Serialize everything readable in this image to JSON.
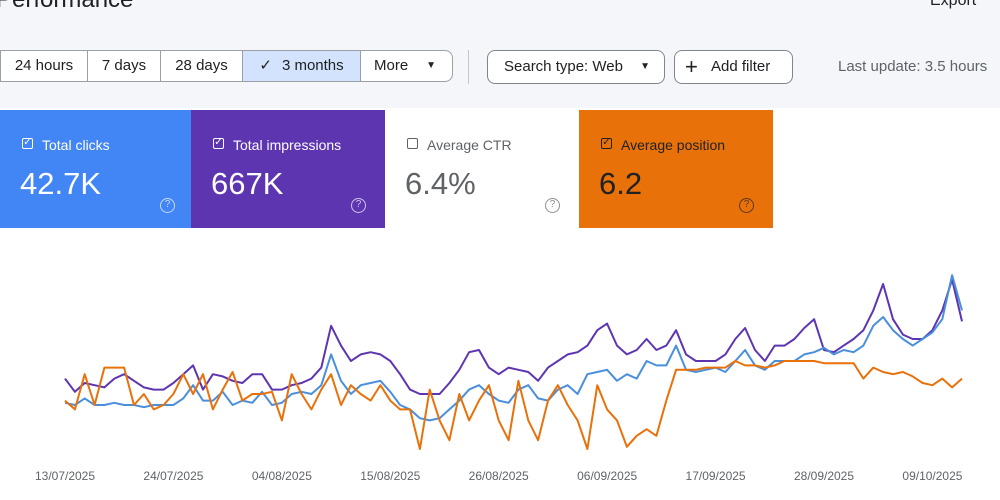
{
  "header": {
    "title": "Performance",
    "export": "Export"
  },
  "toolbar": {
    "ranges": [
      "24 hours",
      "7 days",
      "28 days",
      "3 months",
      "More"
    ],
    "selected": 3,
    "search_type": "Search type: Web",
    "add_filter": "Add filter",
    "last_update": "Last update: 3.5 hours"
  },
  "cards": [
    {
      "label": "Total clicks",
      "value": "42.7K",
      "checked": true,
      "color": "#4285f4"
    },
    {
      "label": "Total impressions",
      "value": "667K",
      "checked": true,
      "color": "#5e35b1"
    },
    {
      "label": "Average CTR",
      "value": "6.4%",
      "checked": false,
      "color": "#ffffff"
    },
    {
      "label": "Average position",
      "value": "6.2",
      "checked": true,
      "color": "#e8710a"
    }
  ],
  "chart_data": {
    "type": "line",
    "categories": [
      "13/07/2025",
      null,
      null,
      null,
      null,
      null,
      null,
      null,
      null,
      null,
      null,
      "24/07/2025",
      null,
      null,
      null,
      null,
      null,
      null,
      null,
      null,
      null,
      null,
      "04/08/2025",
      null,
      null,
      null,
      null,
      null,
      null,
      null,
      null,
      null,
      null,
      "15/08/2025",
      null,
      null,
      null,
      null,
      null,
      null,
      null,
      null,
      null,
      null,
      "26/08/2025",
      null,
      null,
      null,
      null,
      null,
      null,
      null,
      null,
      null,
      null,
      "06/09/2025",
      null,
      null,
      null,
      null,
      null,
      null,
      null,
      null,
      null,
      null,
      "17/09/2025",
      null,
      null,
      null,
      null,
      null,
      null,
      null,
      null,
      null,
      null,
      "28/09/2025",
      null,
      null,
      null,
      null,
      null,
      null,
      null,
      null,
      null,
      null,
      "09/10/2025",
      null,
      null,
      null
    ],
    "ylim": [
      0,
      100
    ],
    "grid": false,
    "series": [
      {
        "name": "Total impressions",
        "color": "#5e35b1",
        "values": [
          37,
          31,
          35,
          34,
          33,
          37,
          39,
          36,
          33,
          32,
          32,
          35,
          39,
          43,
          32,
          39,
          38,
          36,
          35,
          39,
          39,
          32,
          32,
          34,
          35,
          37,
          42,
          61,
          52,
          45,
          48,
          49,
          48,
          45,
          39,
          32,
          30,
          30,
          30,
          35,
          41,
          49,
          50,
          42,
          39,
          42,
          41,
          40,
          36,
          42,
          45,
          48,
          49,
          52,
          59,
          62,
          52,
          48,
          50,
          55,
          50,
          52,
          59,
          48,
          45,
          45,
          45,
          48,
          55,
          60,
          50,
          45,
          52,
          52,
          55,
          60,
          64,
          50,
          49,
          52,
          55,
          59,
          68,
          80,
          64,
          57,
          55,
          55,
          59,
          68,
          82,
          63
        ]
      },
      {
        "name": "Total clicks",
        "color": "#4a8fdb",
        "values": [
          26,
          25,
          28,
          25,
          25,
          26,
          25,
          25,
          24,
          25,
          25,
          25,
          28,
          34,
          27,
          27,
          31,
          25,
          27,
          26,
          31,
          25,
          26,
          30,
          31,
          30,
          34,
          48,
          36,
          30,
          34,
          35,
          36,
          31,
          25,
          23,
          19,
          18,
          19,
          23,
          27,
          32,
          34,
          30,
          27,
          26,
          32,
          34,
          28,
          27,
          32,
          34,
          30,
          39,
          40,
          41,
          36,
          39,
          37,
          45,
          43,
          43,
          52,
          41,
          40,
          41,
          42,
          40,
          45,
          50,
          43,
          41,
          45,
          45,
          45,
          48,
          49,
          51,
          48,
          50,
          49,
          52,
          61,
          65,
          59,
          55,
          52,
          55,
          58,
          64,
          84,
          68
        ]
      },
      {
        "name": "Average position",
        "color": "#e8710a",
        "values": [
          27,
          23,
          39,
          25,
          42,
          42,
          42,
          25,
          30,
          23,
          25,
          30,
          39,
          30,
          39,
          23,
          32,
          40,
          27,
          30,
          30,
          31,
          18,
          39,
          30,
          23,
          32,
          39,
          25,
          34,
          30,
          27,
          34,
          27,
          23,
          23,
          5,
          32,
          18,
          9,
          30,
          18,
          27,
          34,
          18,
          9,
          36,
          18,
          9,
          27,
          34,
          25,
          18,
          5,
          34,
          23,
          18,
          6,
          11,
          14,
          11,
          27,
          41,
          41,
          41,
          42,
          42,
          42,
          45,
          43,
          43,
          42,
          43,
          45,
          45,
          45,
          45,
          44,
          44,
          44,
          44,
          37,
          42,
          40,
          39,
          40,
          38,
          35,
          34,
          37,
          33,
          37
        ]
      }
    ]
  }
}
